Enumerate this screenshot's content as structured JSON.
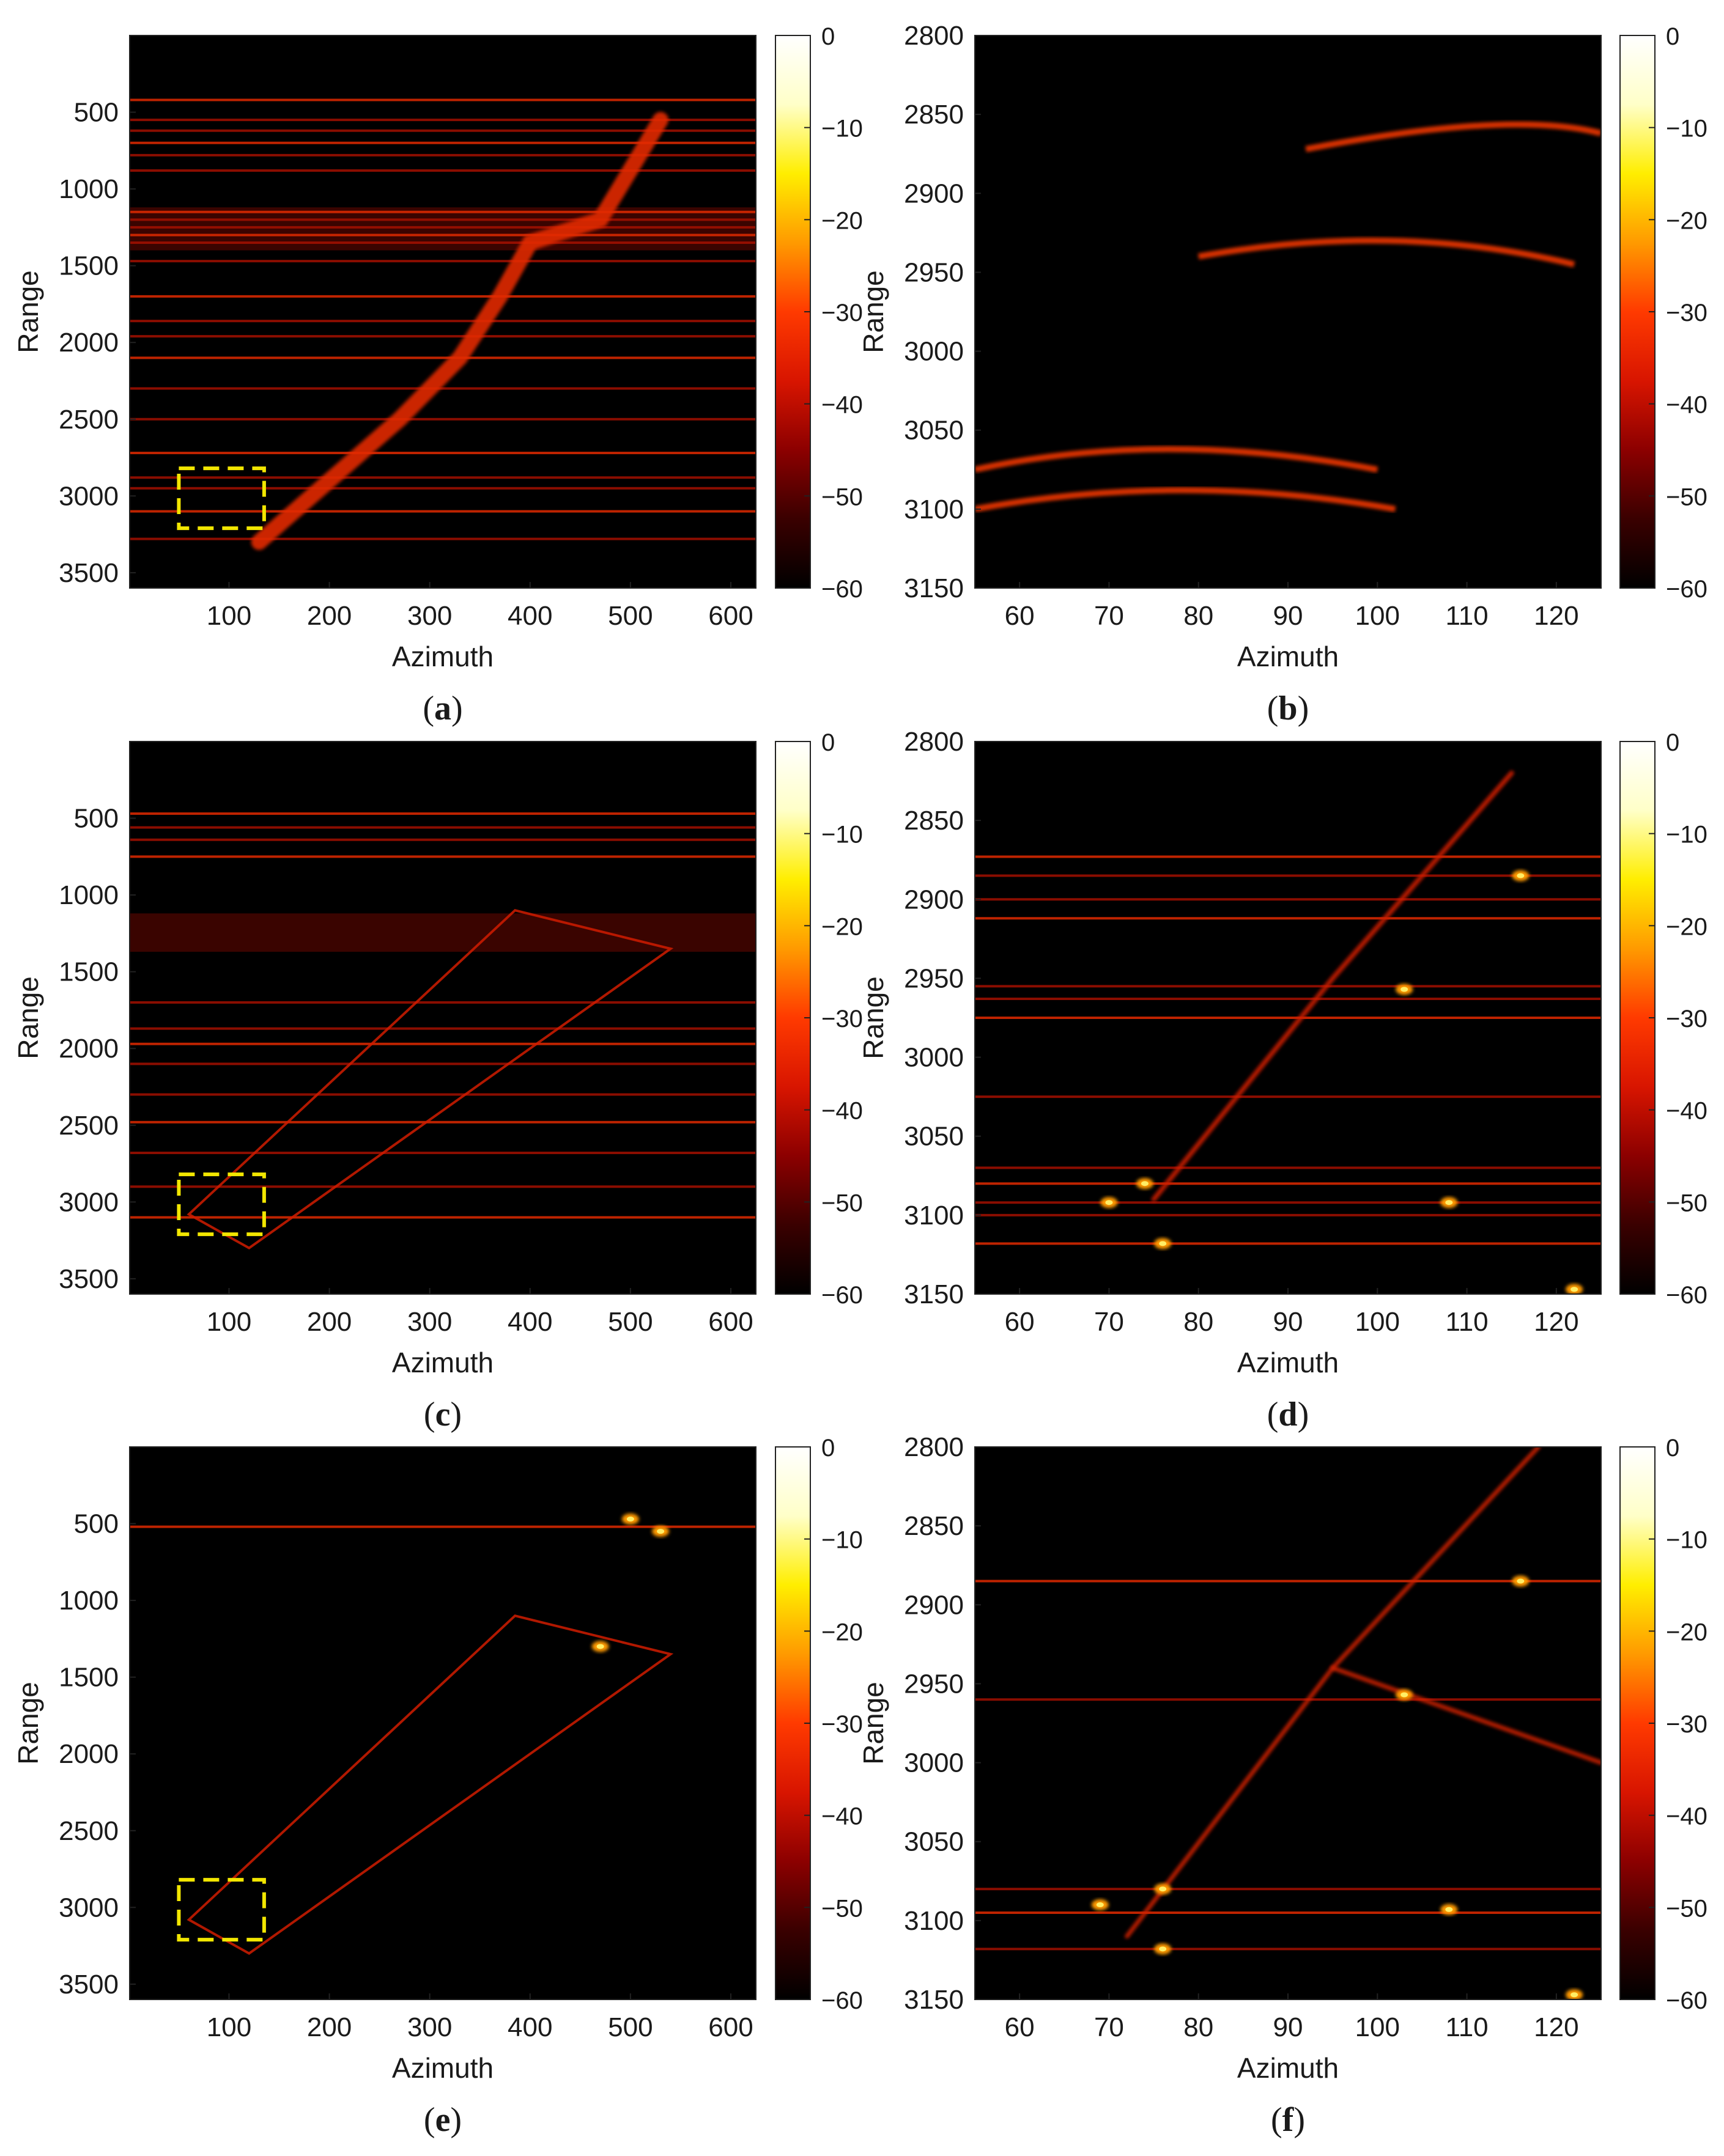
{
  "colormap": {
    "stops": [
      "#000000",
      "#3a0000",
      "#8c0000",
      "#d81500",
      "#ff3a00",
      "#ff9a00",
      "#ffee00",
      "#ffffc8",
      "#ffffff"
    ],
    "box_color": "#f2e600"
  },
  "panels": [
    {
      "id": "a",
      "label_parts": [
        "(",
        "a",
        ")"
      ],
      "xlabel": "Azimuth",
      "ylabel": "Range",
      "xticks": [
        "100",
        "200",
        "300",
        "400",
        "500",
        "600"
      ],
      "yticks": [
        "500",
        "1000",
        "1500",
        "2000",
        "2500",
        "3000",
        "3500"
      ],
      "cticks": [
        "0",
        "−10",
        "−20",
        "−30",
        "−40",
        "−50",
        "−60"
      ]
    },
    {
      "id": "b",
      "label_parts": [
        "(",
        "b",
        ")"
      ],
      "xlabel": "Azimuth",
      "ylabel": "Range",
      "xticks": [
        "60",
        "70",
        "80",
        "90",
        "100",
        "110",
        "120"
      ],
      "yticks": [
        "2800",
        "2850",
        "2900",
        "2950",
        "3000",
        "3050",
        "3100",
        "3150"
      ],
      "cticks": [
        "0",
        "−10",
        "−20",
        "−30",
        "−40",
        "−50",
        "−60"
      ]
    },
    {
      "id": "c",
      "label_parts": [
        "(",
        "c",
        ")"
      ],
      "xlabel": "Azimuth",
      "ylabel": "Range",
      "xticks": [
        "100",
        "200",
        "300",
        "400",
        "500",
        "600"
      ],
      "yticks": [
        "500",
        "1000",
        "1500",
        "2000",
        "2500",
        "3000",
        "3500"
      ],
      "cticks": [
        "0",
        "−10",
        "−20",
        "−30",
        "−40",
        "−50",
        "−60"
      ]
    },
    {
      "id": "d",
      "label_parts": [
        "(",
        "d",
        ")"
      ],
      "xlabel": "Azimuth",
      "ylabel": "Range",
      "xticks": [
        "60",
        "70",
        "80",
        "90",
        "100",
        "110",
        "120"
      ],
      "yticks": [
        "2800",
        "2850",
        "2900",
        "2950",
        "3000",
        "3050",
        "3100",
        "3150"
      ],
      "cticks": [
        "0",
        "−10",
        "−20",
        "−30",
        "−40",
        "−50",
        "−60"
      ]
    },
    {
      "id": "e",
      "label_parts": [
        "(",
        "e",
        ")"
      ],
      "xlabel": "Azimuth",
      "ylabel": "Range",
      "xticks": [
        "100",
        "200",
        "300",
        "400",
        "500",
        "600"
      ],
      "yticks": [
        "500",
        "1000",
        "1500",
        "2000",
        "2500",
        "3000",
        "3500"
      ],
      "cticks": [
        "0",
        "−10",
        "−20",
        "−30",
        "−40",
        "−50",
        "−60"
      ]
    },
    {
      "id": "f",
      "label_parts": [
        "(",
        "f",
        ")"
      ],
      "xlabel": "Azimuth",
      "ylabel": "Range",
      "xticks": [
        "60",
        "70",
        "80",
        "90",
        "100",
        "110",
        "120"
      ],
      "yticks": [
        "2800",
        "2850",
        "2900",
        "2950",
        "3000",
        "3050",
        "3100",
        "3150"
      ],
      "cticks": [
        "0",
        "−10",
        "−20",
        "−30",
        "−40",
        "−50",
        "−60"
      ]
    }
  ],
  "chart_data": [
    {
      "panel": "a",
      "type": "heatmap",
      "xlabel": "Azimuth",
      "ylabel": "Range",
      "xlim": [
        1,
        625
      ],
      "ylim": [
        0,
        3600
      ],
      "yaxis": "reversed",
      "clim": [
        -60,
        0
      ],
      "roi_box": {
        "x": [
          50,
          135
        ],
        "y": [
          2820,
          3210
        ]
      },
      "features": {
        "horizontal_lines": [
          420,
          550,
          620,
          700,
          780,
          880,
          1150,
          1200,
          1250,
          1300,
          1350,
          1470,
          1700,
          1860,
          1960,
          2100,
          2300,
          2500,
          2720,
          2880,
          2950,
          3100,
          3280
        ],
        "wide_bands": [
          [
            1120,
            1400
          ]
        ],
        "trajectory": [
          [
            130,
            3300
          ],
          [
            200,
            2900
          ],
          [
            270,
            2500
          ],
          [
            330,
            2100
          ],
          [
            370,
            1700
          ],
          [
            400,
            1350
          ],
          [
            470,
            1200
          ],
          [
            530,
            550
          ]
        ]
      }
    },
    {
      "panel": "b",
      "type": "heatmap",
      "xlabel": "Azimuth",
      "ylabel": "Range",
      "xlim": [
        55,
        125
      ],
      "ylim": [
        2800,
        3150
      ],
      "yaxis": "reversed",
      "clim": [
        -60,
        0
      ],
      "features": {
        "bright_arcs": [
          {
            "x": [
              55,
              76,
              100
            ],
            "y": [
              3075,
              3062,
              3075
            ]
          },
          {
            "x": [
              55,
              78,
              102
            ],
            "y": [
              3100,
              3088,
              3100
            ]
          },
          {
            "x": [
              92,
              115,
              125
            ],
            "y": [
              2872,
              2857,
              2862
            ]
          },
          {
            "x": [
              80,
              102,
              122
            ],
            "y": [
              2940,
              2930,
              2945
            ]
          }
        ]
      }
    },
    {
      "panel": "c",
      "type": "heatmap",
      "xlabel": "Azimuth",
      "ylabel": "Range",
      "xlim": [
        1,
        625
      ],
      "ylim": [
        0,
        3600
      ],
      "yaxis": "reversed",
      "clim": [
        -60,
        0
      ],
      "roi_box": {
        "x": [
          50,
          135
        ],
        "y": [
          2820,
          3210
        ]
      },
      "features": {
        "horizontal_lines": [
          470,
          560,
          640,
          750,
          1700,
          1870,
          1970,
          2100,
          2300,
          2480,
          2680,
          2900,
          3100
        ],
        "wide_bands": [
          [
            1120,
            1370
          ]
        ],
        "parallelogram": [
          [
            120,
            3300
          ],
          [
            60,
            3080
          ],
          [
            385,
            1100
          ],
          [
            540,
            1350
          ]
        ]
      }
    },
    {
      "panel": "d",
      "type": "heatmap",
      "xlabel": "Azimuth",
      "ylabel": "Range",
      "xlim": [
        55,
        125
      ],
      "ylim": [
        2800,
        3150
      ],
      "yaxis": "reversed",
      "clim": [
        -60,
        0
      ],
      "features": {
        "horizontal_lines": [
          2873,
          2885,
          2900,
          2912,
          2955,
          2963,
          2975,
          3025,
          3070,
          3080,
          3092,
          3100,
          3118
        ],
        "bright_points": [
          [
            74,
            3080
          ],
          [
            76,
            3118
          ],
          [
            70,
            3092
          ],
          [
            103,
            2957
          ],
          [
            116,
            2885
          ],
          [
            108,
            3092
          ],
          [
            122,
            3147
          ]
        ],
        "diagonal": [
          [
            75,
            3090
          ],
          [
            95,
            2950
          ],
          [
            115,
            2820
          ]
        ]
      }
    },
    {
      "panel": "e",
      "type": "heatmap",
      "xlabel": "Azimuth",
      "ylabel": "Range",
      "xlim": [
        1,
        625
      ],
      "ylim": [
        0,
        3600
      ],
      "yaxis": "reversed",
      "clim": [
        -60,
        0
      ],
      "roi_box": {
        "x": [
          50,
          135
        ],
        "y": [
          2820,
          3210
        ]
      },
      "features": {
        "horizontal_lines": [
          520
        ],
        "parallelogram": [
          [
            120,
            3300
          ],
          [
            60,
            3080
          ],
          [
            385,
            1100
          ],
          [
            540,
            1350
          ]
        ],
        "bright_cluster": [
          [
            530,
            550
          ],
          [
            500,
            470
          ],
          [
            470,
            1300
          ]
        ]
      }
    },
    {
      "panel": "f",
      "type": "heatmap",
      "xlabel": "Azimuth",
      "ylabel": "Range",
      "xlim": [
        55,
        125
      ],
      "ylim": [
        2800,
        3150
      ],
      "yaxis": "reversed",
      "clim": [
        -60,
        0
      ],
      "features": {
        "horizontal_lines": [
          2885,
          2960,
          3080,
          3095,
          3118
        ],
        "bright_points": [
          [
            76,
            3080
          ],
          [
            76,
            3118
          ],
          [
            69,
            3090
          ],
          [
            103,
            2957
          ],
          [
            116,
            2885
          ],
          [
            108,
            3093
          ],
          [
            122,
            3147
          ]
        ],
        "diagonals": [
          [
            [
              72,
              3110
            ],
            [
              95,
              2940
            ],
            [
              118,
              2800
            ]
          ],
          [
            [
              95,
              2940
            ],
            [
              125,
              3000
            ]
          ]
        ]
      }
    }
  ]
}
